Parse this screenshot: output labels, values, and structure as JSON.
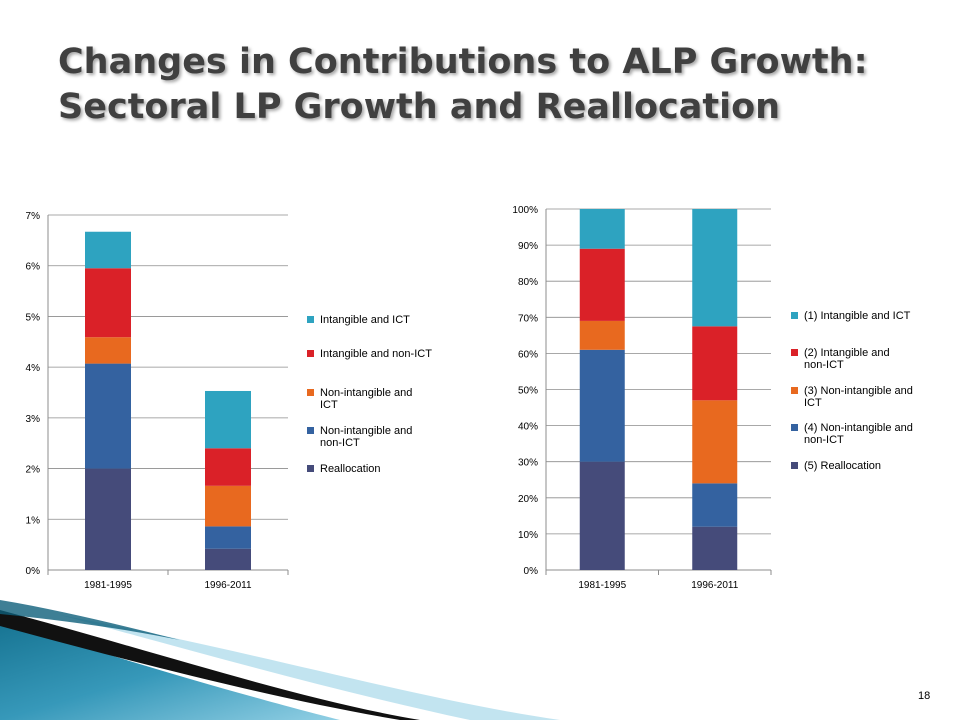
{
  "slide": {
    "title_line1": "Changes in Contributions to ALP Growth:",
    "title_line2": "Sectoral LP Growth and Reallocation",
    "page_number": "18"
  },
  "chart_data": [
    {
      "type": "bar",
      "stacked": true,
      "categories": [
        "1981-1995",
        "1996-2011"
      ],
      "ylim": [
        0,
        7
      ],
      "yunit": "%",
      "yticks": [
        "0%",
        "1%",
        "2%",
        "3%",
        "4%",
        "5%",
        "6%",
        "7%"
      ],
      "grid": true,
      "legend_position": "right",
      "series": [
        {
          "name": "Reallocation",
          "color": "#454B7A",
          "values": [
            2.0,
            0.42
          ]
        },
        {
          "name": "Non-intangible and non-ICT",
          "color": "#3462A0",
          "values": [
            2.07,
            0.44
          ]
        },
        {
          "name": "Non-intangible and ICT",
          "color": "#E8691F",
          "values": [
            0.52,
            0.8
          ]
        },
        {
          "name": "Intangible and non-ICT",
          "color": "#DA2128",
          "values": [
            1.36,
            0.74
          ]
        },
        {
          "name": "Intangible and ICT",
          "color": "#2EA3C0",
          "values": [
            0.72,
            1.13
          ]
        }
      ]
    },
    {
      "type": "bar",
      "stacked": true,
      "categories": [
        "1981-1995",
        "1996-2011"
      ],
      "ylim": [
        0,
        100
      ],
      "yunit": "%",
      "yticks": [
        "0%",
        "10%",
        "20%",
        "30%",
        "40%",
        "50%",
        "60%",
        "70%",
        "80%",
        "90%",
        "100%"
      ],
      "grid": true,
      "legend_position": "right",
      "series": [
        {
          "name": "(5) Reallocation",
          "color": "#454B7A",
          "values": [
            30,
            12
          ]
        },
        {
          "name": "(4) Non-intangible and non-ICT",
          "color": "#3462A0",
          "values": [
            31,
            12
          ]
        },
        {
          "name": "(3) Non-intangible and ICT",
          "color": "#E8691F",
          "values": [
            8,
            23
          ]
        },
        {
          "name": "(2) Intangible and non-ICT",
          "color": "#DA2128",
          "values": [
            20,
            20.5
          ]
        },
        {
          "name": "(1) Intangible and ICT",
          "color": "#2EA3C0",
          "values": [
            11,
            32.5
          ]
        }
      ]
    }
  ]
}
